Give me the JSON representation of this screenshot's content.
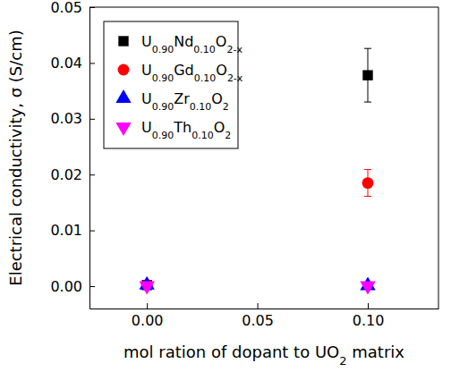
{
  "chart_data": {
    "type": "scatter",
    "x_label": "mol ration of dopant to UO2 matrix",
    "y_label": "Electrical conductivity, σ (S/cm)",
    "xlim": [
      -0.026,
      0.132
    ],
    "xticks": [
      {
        "value": 0,
        "label": "0.00"
      },
      0.05,
      {
        "value": 0.1,
        "label": "0.10"
      }
    ],
    "ylim": [
      -0.004,
      0.05
    ],
    "yticks": [
      {
        "value": 0,
        "label": "0.00"
      },
      0.01,
      0.02,
      0.03,
      0.04,
      0.05
    ],
    "legend": "upper left",
    "series": [
      {
        "name": "U0.90Nd0.10O2-x",
        "color": "#000000",
        "marker": "square",
        "x": [
          0,
          0.1
        ],
        "values": [
          0.0002,
          0.0378
        ],
        "errors": [
          0,
          0.0048
        ]
      },
      {
        "name": "U0.90Gd0.10O2-x",
        "color": "#ff0000",
        "marker": "circle",
        "x": [
          0,
          0.1
        ],
        "values": [
          0.0002,
          0.0185
        ],
        "errors": [
          0,
          0.0024
        ]
      },
      {
        "name": "U0.90Zr0.10O2",
        "color": "#0000ff",
        "marker": "triangle-up",
        "x": [
          0,
          0.1
        ],
        "values": [
          0.0002,
          0.0001
        ],
        "errors": [
          0,
          0
        ]
      },
      {
        "name": "U0.90Th0.10O2",
        "color": "#ff00ff",
        "marker": "triangle-down",
        "x": [
          0,
          0.1
        ],
        "values": [
          0.0001,
          0.0001
        ],
        "errors": [
          0,
          0
        ]
      }
    ]
  }
}
